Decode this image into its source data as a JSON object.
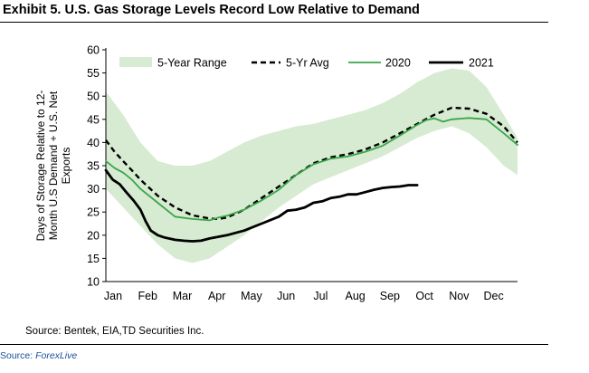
{
  "header": {
    "title": "Exhibit 5. U.S. Gas Storage Levels Record Low Relative to Demand"
  },
  "footer": {
    "source": "Source: Bentek, EIA,TD Securities Inc."
  },
  "credit": {
    "prefix": "Source: ",
    "name": "ForexLive"
  },
  "colors": {
    "range": "#d7ebd2",
    "avg": "#000000",
    "y2020": "#3aa64a",
    "y2021": "#000000",
    "axis": "#000000",
    "credit": "#1a4f9c"
  },
  "chart_data": {
    "type": "line",
    "title": "Exhibit 5. U.S. Gas Storage Levels Record Low Relative to Demand",
    "xlabel": "",
    "ylabel": "Days of Storage Relative to 12-Month U.S Demand + U.S. Net Exports",
    "ylabel_lines": [
      "Days of Storage Relative to 12-",
      "Month U.S Demand + U.S. Net",
      "Exports"
    ],
    "ylim": [
      10,
      60
    ],
    "yticks": [
      "10",
      "15",
      "20",
      "25",
      "30",
      "35",
      "40",
      "45",
      "50",
      "55",
      "60"
    ],
    "categories": [
      "Jan",
      "Feb",
      "Mar",
      "Apr",
      "May",
      "Jun",
      "Jul",
      "Aug",
      "Sep",
      "Oct",
      "Nov",
      "Dec"
    ],
    "xlim": [
      0,
      11.9
    ],
    "legend_position": "top",
    "legend": [
      "5-Year Range",
      "5-Yr Avg",
      "2020",
      "2021"
    ],
    "series": [
      {
        "name": "5-Year Range",
        "kind": "band",
        "x": [
          0,
          0.5,
          1,
          1.5,
          2,
          2.5,
          3,
          3.5,
          4,
          4.5,
          5,
          5.5,
          6,
          6.5,
          7,
          7.5,
          8,
          8.5,
          9,
          9.5,
          10,
          10.5,
          11,
          11.5,
          11.9
        ],
        "lower": [
          30,
          26,
          22,
          18,
          15,
          14,
          15,
          17.5,
          20,
          23,
          26,
          28.5,
          31,
          32.5,
          34,
          35.5,
          37,
          39,
          41,
          42.5,
          43.5,
          42,
          39,
          35,
          33
        ],
        "upper": [
          51,
          46,
          40,
          36,
          35,
          35,
          36,
          38,
          40,
          41.5,
          42.5,
          43.5,
          44,
          45,
          46,
          47,
          48.5,
          50.5,
          53,
          55,
          56,
          55.5,
          52,
          46,
          41
        ]
      },
      {
        "name": "5-Yr Avg",
        "kind": "line",
        "dash": true,
        "x": [
          0,
          0.25,
          0.5,
          0.75,
          1,
          1.5,
          2,
          2.5,
          3,
          3.25,
          3.5,
          4,
          4.5,
          5,
          5.5,
          6,
          6.5,
          7,
          7.5,
          8,
          8.5,
          9,
          9.5,
          10,
          10.5,
          11,
          11.5,
          11.9
        ],
        "y": [
          40.5,
          38,
          36,
          34,
          32,
          28.5,
          26,
          24.3,
          23.6,
          23.5,
          23.8,
          25.5,
          28,
          30.5,
          33,
          35.5,
          36.8,
          37.5,
          38.5,
          40,
          42,
          44,
          46,
          47.5,
          47.3,
          46.2,
          43.5,
          40
        ]
      },
      {
        "name": "2020",
        "kind": "line",
        "x": [
          0,
          0.25,
          0.5,
          0.75,
          1,
          1.5,
          2,
          2.5,
          3,
          3.25,
          3.5,
          4,
          4.5,
          5,
          5.5,
          6,
          6.5,
          7,
          7.5,
          8,
          8.5,
          9,
          9.25,
          9.5,
          9.75,
          10,
          10.5,
          11,
          11.5,
          11.9
        ],
        "y": [
          36,
          34.5,
          33.5,
          32,
          30,
          27,
          24,
          23.5,
          23.2,
          23.8,
          24.2,
          25.5,
          27.5,
          29.8,
          33,
          35.3,
          36.5,
          37,
          38,
          39.3,
          41.5,
          43.8,
          44.8,
          45.2,
          44.5,
          45,
          45.3,
          45,
          42,
          39.5
        ]
      },
      {
        "name": "2021",
        "kind": "line",
        "x": [
          0,
          0.2,
          0.4,
          0.6,
          0.8,
          1,
          1.15,
          1.3,
          1.5,
          1.7,
          2,
          2.25,
          2.5,
          2.75,
          3,
          3.5,
          4,
          4.5,
          5,
          5.25,
          5.5,
          5.75,
          6,
          6.25,
          6.5,
          6.75,
          7,
          7.25,
          7.5,
          7.75,
          8,
          8.25,
          8.5,
          8.75,
          9
        ],
        "y": [
          34,
          32,
          31,
          29.2,
          27.5,
          25.5,
          23,
          21,
          20,
          19.5,
          19,
          18.8,
          18.7,
          18.8,
          19.3,
          20,
          21,
          22.5,
          24,
          25.3,
          25.5,
          26,
          27,
          27.3,
          28,
          28.3,
          28.8,
          28.8,
          29.3,
          29.8,
          30.2,
          30.4,
          30.5,
          30.8,
          30.8
        ]
      }
    ]
  }
}
